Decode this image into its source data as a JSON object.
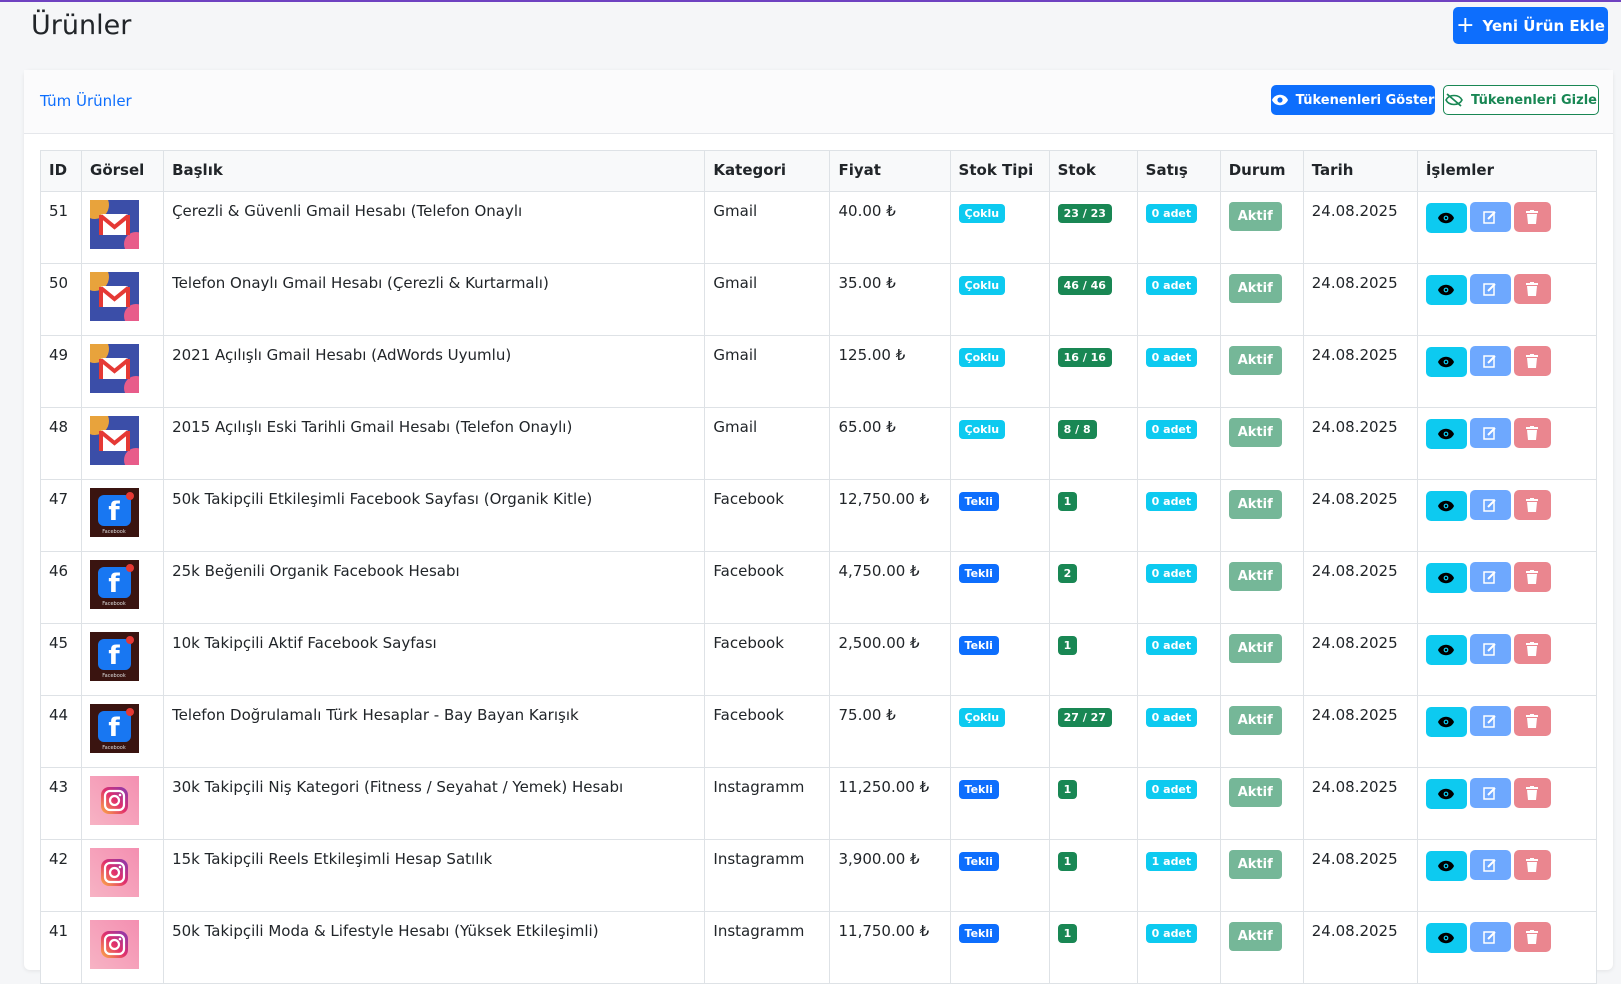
{
  "header": {
    "title": "Ürünler",
    "add_button": "Yeni Ürün Ekle"
  },
  "toolbar": {
    "title": "Tüm Ürünler",
    "show_button": "Tükenenleri Göster",
    "hide_button": "Tükenenleri Gizle"
  },
  "table": {
    "headers": [
      "ID",
      "Görsel",
      "Başlık",
      "Kategori",
      "Fiyat",
      "Stok Tipi",
      "Stok",
      "Satış",
      "Durum",
      "Tarih",
      "İşlemler"
    ],
    "rows": [
      [
        "51",
        "Çerezli & Güvenli Gmail Hesabı (Telefon Onaylı",
        "Gmail",
        "40.00 ₺",
        "Çoklu",
        "23 / 23",
        "0 adet",
        "Aktif",
        "24.08.2025"
      ],
      [
        "50",
        "Telefon Onaylı Gmail Hesabı (Çerezli & Kurtarmalı)",
        "Gmail",
        "35.00 ₺",
        "Çoklu",
        "46 / 46",
        "0 adet",
        "Aktif",
        "24.08.2025"
      ],
      [
        "49",
        "2021 Açılışlı Gmail Hesabı (AdWords Uyumlu)",
        "Gmail",
        "125.00 ₺",
        "Çoklu",
        "16 / 16",
        "0 adet",
        "Aktif",
        "24.08.2025"
      ],
      [
        "48",
        "2015 Açılışlı Eski Tarihli Gmail Hesabı (Telefon Onaylı)",
        "Gmail",
        "65.00 ₺",
        "Çoklu",
        "8 / 8",
        "0 adet",
        "Aktif",
        "24.08.2025"
      ],
      [
        "47",
        "50k Takipçili Etkileşimli Facebook Sayfası (Organik Kitle)",
        "Facebook",
        "12,750.00 ₺",
        "Tekli",
        "1",
        "0 adet",
        "Aktif",
        "24.08.2025"
      ],
      [
        "46",
        "25k Beğenili Organik Facebook Hesabı",
        "Facebook",
        "4,750.00 ₺",
        "Tekli",
        "2",
        "0 adet",
        "Aktif",
        "24.08.2025"
      ],
      [
        "45",
        "10k Takipçili Aktif Facebook Sayfası",
        "Facebook",
        "2,500.00 ₺",
        "Tekli",
        "1",
        "0 adet",
        "Aktif",
        "24.08.2025"
      ],
      [
        "44",
        "Telefon Doğrulamalı Türk Hesaplar - Bay Bayan Karışık",
        "Facebook",
        "75.00 ₺",
        "Çoklu",
        "27 / 27",
        "0 adet",
        "Aktif",
        "24.08.2025"
      ],
      [
        "43",
        "30k Takipçili Niş Kategori (Fitness / Seyahat / Yemek) Hesabı",
        "Instagramm",
        "11,250.00 ₺",
        "Tekli",
        "1",
        "0 adet",
        "Aktif",
        "24.08.2025"
      ],
      [
        "42",
        "15k Takipçili Reels Etkileşimli Hesap Satılık",
        "Instagramm",
        "3,900.00 ₺",
        "Tekli",
        "1",
        "1 adet",
        "Aktif",
        "24.08.2025"
      ],
      [
        "41",
        "50k Takipçili Moda & Lifestyle Hesabı (Yüksek Etkileşimli)",
        "Instagramm",
        "11,750.00 ₺",
        "Tekli",
        "1",
        "0 adet",
        "Aktif",
        "24.08.2025"
      ]
    ]
  }
}
